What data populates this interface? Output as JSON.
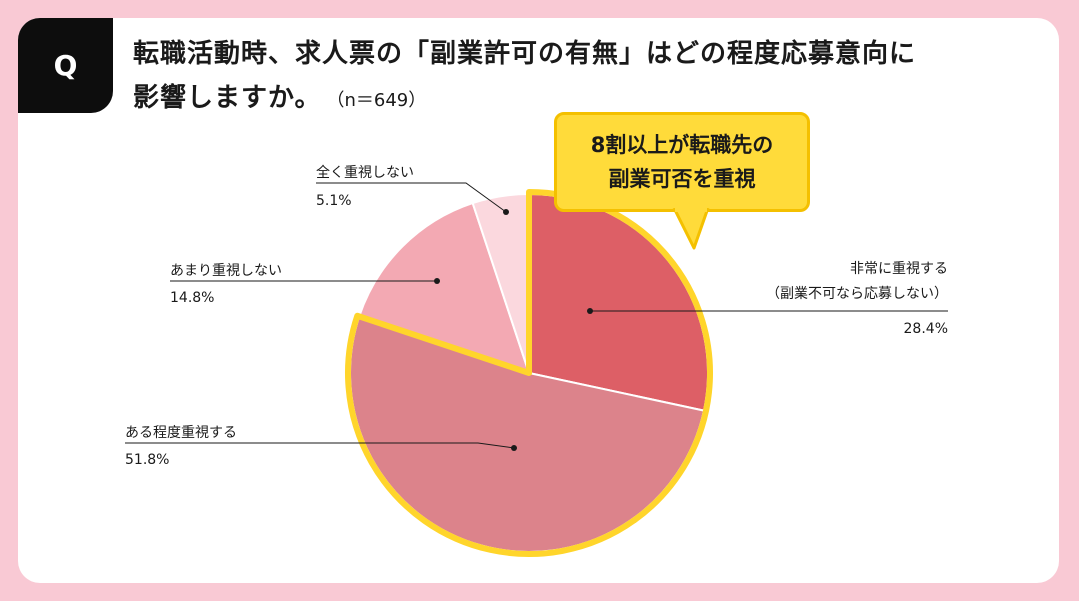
{
  "question": {
    "badge": "Q",
    "line1": "転職活動時、求人票の「副業許可の有無」はどの程度応募意向に",
    "line2": "影響しますか。",
    "sample": "（n＝649）"
  },
  "callout": {
    "line1": "8割以上が転職先の",
    "line2": "副業可否を重視"
  },
  "colors": {
    "background": "#f9c9d4",
    "highlight_border": "#ffd52b",
    "callout_fill": "#ffdb3a"
  },
  "chart_data": {
    "type": "pie",
    "title": "",
    "start": "12 o'clock, clockwise",
    "slices": [
      {
        "label": "非常に重視する",
        "sublabel": "（副業不可なら応募しない）",
        "value": 28.4,
        "display": "28.4%",
        "color": "#dd5f66"
      },
      {
        "label": "ある程度重視する",
        "sublabel": "",
        "value": 51.8,
        "display": "51.8%",
        "color": "#dc838b"
      },
      {
        "label": "あまり重視しない",
        "sublabel": "",
        "value": 14.8,
        "display": "14.8%",
        "color": "#f3a9b3"
      },
      {
        "label": "全く重視しない",
        "sublabel": "",
        "value": 5.1,
        "display": "5.1%",
        "color": "#fbd8de"
      }
    ],
    "highlighted_slices": [
      "非常に重視する",
      "ある程度重視する"
    ]
  }
}
